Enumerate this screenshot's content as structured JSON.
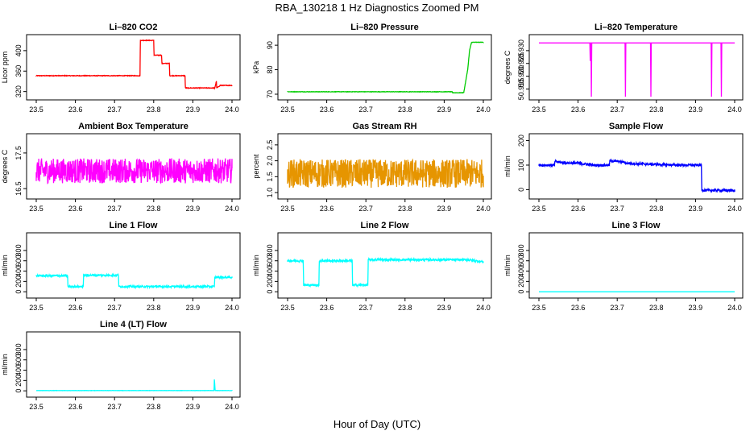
{
  "figure": {
    "title": "RBA_130218  1 Hz Diagnostics Zoomed PM",
    "xlabel": "Hour of Day (UTC)"
  },
  "chart_data": [
    {
      "id": "co2",
      "type": "line",
      "title": "Li–820 CO2",
      "ylabel": "Licor ppm",
      "color": "#ff0000",
      "xlim": [
        23.5,
        24.0
      ],
      "ylim": [
        310,
        425
      ],
      "xticks": [
        "23.5",
        "23.6",
        "23.7",
        "23.8",
        "23.9",
        "24.0"
      ],
      "yticks": [
        "320",
        "360",
        "400"
      ],
      "noise": 0.6,
      "series": [
        {
          "name": "CO2",
          "x": [
            23.5,
            23.765,
            23.766,
            23.8,
            23.801,
            23.82,
            23.821,
            23.84,
            23.841,
            23.88,
            23.881,
            23.955,
            23.956,
            23.96,
            23.961,
            23.97,
            23.971,
            24.0
          ],
          "y": [
            351,
            351,
            420,
            420,
            391,
            391,
            375,
            375,
            351,
            351,
            327,
            327,
            327,
            340,
            327,
            332,
            332,
            332
          ]
        }
      ]
    },
    {
      "id": "pressure",
      "type": "line",
      "title": "Li–820 Pressure",
      "ylabel": "kPa",
      "color": "#00cc00",
      "xlim": [
        23.5,
        24.0
      ],
      "ylim": [
        69,
        93
      ],
      "xticks": [
        "23.5",
        "23.6",
        "23.7",
        "23.8",
        "23.9",
        "24.0"
      ],
      "yticks": [
        "70",
        "80",
        "90"
      ],
      "noise": 0.08,
      "series": [
        {
          "name": "Pressure",
          "x": [
            23.5,
            23.92,
            23.921,
            23.95,
            23.96,
            23.965,
            23.97,
            24.0
          ],
          "y": [
            71,
            71,
            70.6,
            70.6,
            80,
            88,
            91.2,
            91.2
          ]
        }
      ]
    },
    {
      "id": "licor_temp",
      "type": "line",
      "title": "Li–820 Temperature",
      "ylabel": "degrees C",
      "color": "#ff00ff",
      "xlim": [
        23.5,
        24.0
      ],
      "ylim": [
        50.912,
        50.935
      ],
      "xticks": [
        "23.5",
        "23.6",
        "23.7",
        "23.8",
        "23.9",
        "24.0"
      ],
      "yticks": [
        "50.915",
        "50.920",
        "50.925",
        "50.930"
      ],
      "noise": 0,
      "series": [
        {
          "name": "Temperature",
          "x": [
            23.5,
            23.63,
            23.631,
            23.632,
            23.633,
            23.634,
            23.635,
            23.636,
            23.72,
            23.721,
            23.722,
            23.785,
            23.786,
            23.787,
            23.94,
            23.941,
            23.942,
            23.965,
            23.966,
            23.967,
            24.0
          ],
          "y": [
            50.933,
            50.933,
            50.926,
            50.933,
            50.933,
            50.912,
            50.933,
            50.933,
            50.933,
            50.912,
            50.933,
            50.933,
            50.912,
            50.933,
            50.933,
            50.912,
            50.933,
            50.933,
            50.912,
            50.933,
            50.933
          ]
        }
      ]
    },
    {
      "id": "box_temp",
      "type": "line",
      "title": "Ambient Box Temperature",
      "ylabel": "degrees C",
      "color": "#ff00ff",
      "xlim": [
        23.5,
        24.0
      ],
      "ylim": [
        16.3,
        17.95
      ],
      "xticks": [
        "23.5",
        "23.6",
        "23.7",
        "23.8",
        "23.9",
        "24.0"
      ],
      "yticks": [
        "16.5",
        "17.5"
      ],
      "noise": 0.35,
      "series": [
        {
          "name": "Box Temp",
          "x": [
            23.5,
            24.0
          ],
          "y": [
            17.0,
            17.0
          ]
        }
      ]
    },
    {
      "id": "gas_rh",
      "type": "line",
      "title": "Gas Stream RH",
      "ylabel": "percent",
      "color": "#e69500",
      "xlim": [
        23.5,
        24.0
      ],
      "ylim": [
        0.9,
        2.75
      ],
      "xticks": [
        "23.5",
        "23.6",
        "23.7",
        "23.8",
        "23.9",
        "24.0"
      ],
      "yticks": [
        "1.0",
        "1.5",
        "2.0",
        "2.5"
      ],
      "noise": 0.45,
      "series": [
        {
          "name": "RH",
          "x": [
            23.5,
            24.0
          ],
          "y": [
            1.6,
            1.6
          ]
        }
      ]
    },
    {
      "id": "sample_flow",
      "type": "line",
      "title": "Sample Flow",
      "ylabel": "ml/min",
      "color": "#0000ff",
      "xlim": [
        23.5,
        24.0
      ],
      "ylim": [
        -25,
        215
      ],
      "xticks": [
        "23.5",
        "23.6",
        "23.7",
        "23.8",
        "23.9",
        "24.0"
      ],
      "yticks": [
        "0",
        "100",
        "200"
      ],
      "noise": 5,
      "series": [
        {
          "name": "Sample Flow",
          "x": [
            23.5,
            23.54,
            23.541,
            23.56,
            23.6,
            23.64,
            23.641,
            23.68,
            23.681,
            23.72,
            23.721,
            23.76,
            23.8,
            23.85,
            23.915,
            23.916,
            23.92,
            24.0
          ],
          "y": [
            100,
            100,
            115,
            110,
            108,
            100,
            100,
            100,
            118,
            112,
            108,
            105,
            103,
            100,
            100,
            0,
            -3,
            -3
          ]
        }
      ]
    },
    {
      "id": "line1_flow",
      "type": "line",
      "title": "Line 1 Flow",
      "ylabel": "ml/min",
      "color": "#00ffff",
      "xlim": [
        23.5,
        24.0
      ],
      "ylim": [
        -60,
        1080
      ],
      "xticks": [
        "23.5",
        "23.6",
        "23.7",
        "23.8",
        "23.9",
        "24.0"
      ],
      "yticks": [
        "0",
        "200",
        "400",
        "600",
        "800"
      ],
      "noise": 18,
      "series": [
        {
          "name": "Line 1",
          "x": [
            23.5,
            23.58,
            23.581,
            23.62,
            23.621,
            23.71,
            23.711,
            23.955,
            23.956,
            24.0
          ],
          "y": [
            310,
            310,
            100,
            100,
            320,
            320,
            100,
            100,
            280,
            280
          ]
        }
      ]
    },
    {
      "id": "line2_flow",
      "type": "line",
      "title": "Line 2 Flow",
      "ylabel": "ml/min",
      "color": "#00ffff",
      "xlim": [
        23.5,
        24.0
      ],
      "ylim": [
        -60,
        1080
      ],
      "xticks": [
        "23.5",
        "23.6",
        "23.7",
        "23.8",
        "23.9",
        "24.0"
      ],
      "yticks": [
        "0",
        "200",
        "400",
        "600",
        "800"
      ],
      "noise": 20,
      "series": [
        {
          "name": "Line 2",
          "x": [
            23.5,
            23.54,
            23.541,
            23.58,
            23.581,
            23.665,
            23.666,
            23.705,
            23.706,
            23.96,
            24.0
          ],
          "y": [
            600,
            600,
            130,
            130,
            600,
            600,
            130,
            130,
            620,
            620,
            580
          ]
        }
      ]
    },
    {
      "id": "line3_flow",
      "type": "line",
      "title": "Line 3 Flow",
      "ylabel": "ml/min",
      "color": "#00ffff",
      "xlim": [
        23.5,
        24.0
      ],
      "ylim": [
        -60,
        1080
      ],
      "xticks": [
        "23.5",
        "23.6",
        "23.7",
        "23.8",
        "23.9",
        "24.0"
      ],
      "yticks": [
        "0",
        "200",
        "400",
        "600",
        "800"
      ],
      "noise": 0,
      "series": [
        {
          "name": "Line 3",
          "x": [
            23.5,
            24.0
          ],
          "y": [
            0,
            0
          ]
        }
      ]
    },
    {
      "id": "line4_flow",
      "type": "line",
      "title": "Line 4 (LT) Flow",
      "ylabel": "ml/min",
      "color": "#00ffff",
      "xlim": [
        23.5,
        24.0
      ],
      "ylim": [
        -60,
        1080
      ],
      "xticks": [
        "23.5",
        "23.6",
        "23.7",
        "23.8",
        "23.9",
        "24.0"
      ],
      "yticks": [
        "0",
        "200",
        "400",
        "600",
        "800"
      ],
      "noise": 2,
      "series": [
        {
          "name": "Line 4",
          "x": [
            23.5,
            23.954,
            23.955,
            23.957,
            23.958,
            24.0
          ],
          "y": [
            5,
            5,
            220,
            10,
            5,
            5
          ]
        }
      ]
    }
  ]
}
